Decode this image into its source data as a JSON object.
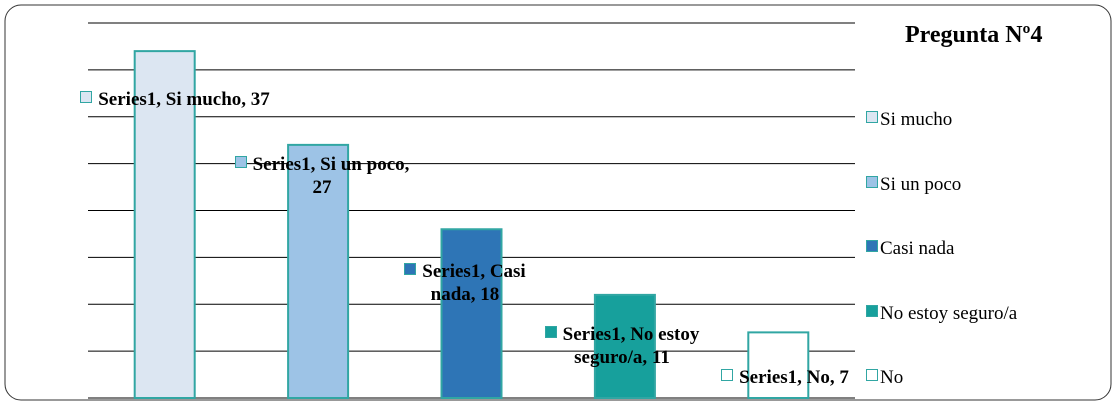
{
  "chart_data": {
    "type": "bar",
    "title": "Pregunta Nº4",
    "series_name": "Series1",
    "categories": [
      "Si mucho",
      "Si un poco",
      "Casi nada",
      "No estoy seguro/a",
      "No"
    ],
    "values": [
      37,
      27,
      18,
      11,
      7
    ],
    "value_labels": [
      "Series1, Si mucho, 37",
      "Series1, Si un poco, 27",
      "Series1, Casi nada, 18",
      "Series1, No estoy seguro/a, 11",
      "Series1, No, 7"
    ],
    "colors": [
      "#dce6f2",
      "#9dc3e6",
      "#2e75b6",
      "#17a09c",
      "#ffffff"
    ],
    "edge_color": "#31a6a3",
    "ylim": [
      0,
      40
    ],
    "yticks": [
      0,
      5,
      10,
      15,
      20,
      25,
      30,
      35,
      40
    ],
    "grid": true,
    "legend": "right"
  }
}
